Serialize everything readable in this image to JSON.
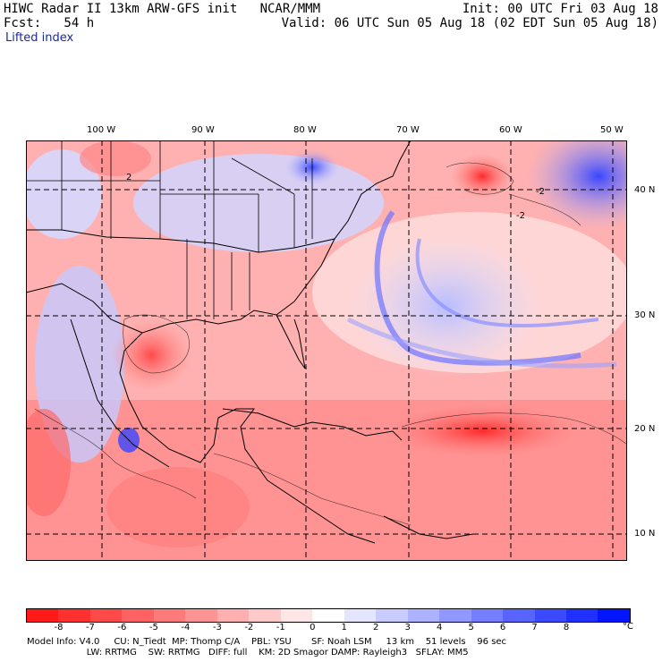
{
  "header": {
    "title_left": "HIWC Radar II 13km ARW-GFS init   NCAR/MMM",
    "fcst": "Fcst:   54 h",
    "field": "Lifted index",
    "init": "Init: 00 UTC Fri 03 Aug 18",
    "valid": "Valid: 06 UTC Sun 05 Aug 18 (02 EDT Sun 05 Aug 18)"
  },
  "lon_labels": [
    "100 W",
    "90 W",
    "80 W",
    "70 W",
    "60 W",
    "50 W"
  ],
  "lat_labels": [
    "40 N",
    "30 N",
    "20 N",
    "10 N"
  ],
  "contour_labels": [
    "2",
    "-2",
    "-2"
  ],
  "colorbar": {
    "colors": [
      "#ff1a1a",
      "#ff3030",
      "#ff4a4a",
      "#ff6262",
      "#ff7a7a",
      "#ff9494",
      "#ffafaf",
      "#ffcaca",
      "#ffe6e6",
      "#ffffff",
      "#e4e6ff",
      "#c8ccff",
      "#acb2ff",
      "#9098ff",
      "#747eff",
      "#5864ff",
      "#3c4aff",
      "#2030ff",
      "#0416ff"
    ],
    "tick_labels": [
      "-8",
      "-7",
      "-6",
      "-5",
      "-4",
      "-3",
      "-2",
      "-1",
      "0",
      "1",
      "2",
      "3",
      "4",
      "5",
      "6",
      "7",
      "8"
    ],
    "unit": "°C"
  },
  "footer": {
    "line1": "Model Info: V4.0     CU: N_Tiedt  MP: Thomp C/A    PBL: YSU       SF: Noah LSM     13 km    51 levels    96 sec",
    "line2": "                     LW: RRTMG    SW: RRTMG   DIFF: full    KM: 2D Smagor DAMP: Rayleigh3   SFLAY: MM5"
  }
}
